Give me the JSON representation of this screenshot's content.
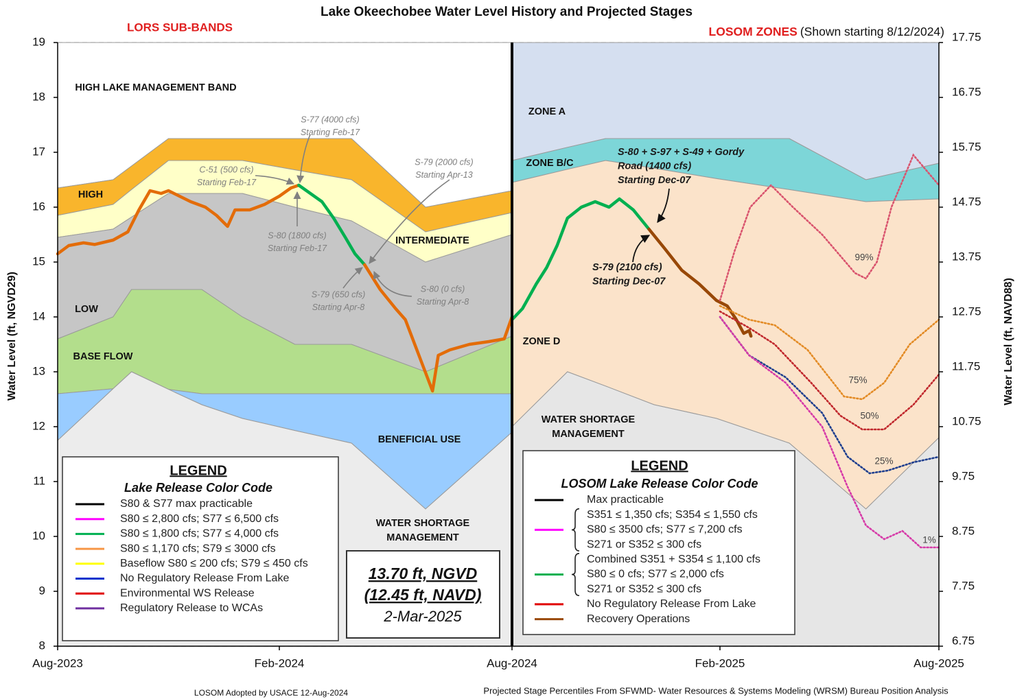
{
  "chart_data": {
    "type": "line",
    "title": "Lake Okeechobee Water Level History and Projected Stages",
    "subtitle_left": "LORS SUB-BANDS",
    "subtitle_right": "LOSOM ZONES",
    "subtitle_right_note": "(Shown starting  8/12/2024)",
    "y_label": "Water Level (ft, NGVD29)",
    "y2_label": "Water Level (ft, NAVD88)",
    "xlim": [
      0,
      24
    ],
    "xticks": [
      {
        "value": 0,
        "label": "Aug-2023"
      },
      {
        "value": 6,
        "label": "Feb-2024"
      },
      {
        "value": 12,
        "label": "Aug-2024"
      },
      {
        "value": 18,
        "label": "Feb-2025"
      },
      {
        "value": 24,
        "label": "Aug-2025"
      }
    ],
    "ylim": [
      8,
      19
    ],
    "yticks": [
      8,
      9,
      10,
      11,
      12,
      13,
      14,
      15,
      16,
      17,
      18,
      19
    ],
    "y2lim": [
      6.75,
      17.75
    ],
    "y2ticks": [
      6.75,
      7.75,
      8.75,
      9.75,
      10.75,
      11.75,
      12.75,
      13.75,
      14.75,
      15.75,
      16.75,
      17.75
    ],
    "grid": true,
    "divider": 12,
    "bands": [
      {
        "label": [
          "HIGH LAKE MANAGEMENT BAND"
        ],
        "color": "#ffffff",
        "x": [
          0,
          1.5,
          2,
          3,
          3.9,
          5,
          6.4,
          7.86,
          9.77,
          12
        ],
        "upper": [
          19,
          19,
          19,
          19,
          19,
          19,
          19,
          19,
          19,
          19
        ],
        "lower": [
          16.35,
          16.5,
          16.75,
          17.25,
          17.25,
          17.25,
          17.25,
          17.25,
          16.0,
          16.3
        ]
      },
      {
        "label": [
          "HIGH"
        ],
        "color": "#f9b52c",
        "x": [
          0,
          1.5,
          2,
          3,
          3.9,
          5,
          6.4,
          7.86,
          9.77,
          12
        ],
        "upper": [
          16.35,
          16.5,
          16.75,
          17.25,
          17.25,
          17.25,
          17.25,
          17.25,
          16.0,
          16.3
        ],
        "lower": [
          15.85,
          16.05,
          16.32,
          16.85,
          16.85,
          16.85,
          16.68,
          16.5,
          15.55,
          15.9
        ]
      },
      {
        "label": [
          "INTERMEDIATE"
        ],
        "color": "#ffffc8",
        "x": [
          0,
          1.5,
          2,
          3,
          3.9,
          5,
          6.4,
          7.86,
          9.77,
          12
        ],
        "upper": [
          15.85,
          16.05,
          16.32,
          16.85,
          16.85,
          16.85,
          16.68,
          16.5,
          15.55,
          15.9
        ],
        "lower": [
          15.45,
          15.6,
          15.82,
          16.25,
          16.25,
          16.25,
          16.0,
          15.75,
          15.0,
          15.5
        ]
      },
      {
        "label": [
          "LOW"
        ],
        "color": "#c6c6c6",
        "x": [
          0,
          1.5,
          2,
          3,
          3.9,
          5,
          6.4,
          7.86,
          9.77,
          12
        ],
        "upper": [
          15.45,
          15.6,
          15.82,
          16.25,
          16.25,
          16.25,
          16.0,
          15.75,
          15.0,
          15.5
        ],
        "lower": [
          13.6,
          14.0,
          14.5,
          14.5,
          14.5,
          14.0,
          13.5,
          13.5,
          13.0,
          13.65
        ]
      },
      {
        "label": [
          "BASE FLOW"
        ],
        "color": "#b3de8c",
        "x": [
          0,
          1.5,
          2,
          3,
          3.9,
          5,
          6.4,
          7.86,
          9.77,
          12
        ],
        "upper": [
          13.6,
          14.0,
          14.5,
          14.5,
          14.5,
          14.0,
          13.5,
          13.5,
          13.0,
          13.65
        ],
        "lower": [
          12.6,
          12.69,
          13.0,
          12.68,
          12.6,
          12.6,
          12.6,
          12.6,
          12.6,
          12.6
        ]
      },
      {
        "label": [
          "BENEFICIAL USE"
        ],
        "color": "#99ccff",
        "x": [
          0,
          1.5,
          2,
          3,
          3.9,
          5,
          6.4,
          7.86,
          9.77,
          12
        ],
        "upper": [
          12.6,
          12.69,
          13.0,
          12.68,
          12.6,
          12.6,
          12.6,
          12.6,
          12.6,
          12.6
        ],
        "lower": [
          11.75,
          12.69,
          13.0,
          12.68,
          12.4,
          12.15,
          11.93,
          11.7,
          10.5,
          11.9
        ]
      },
      {
        "label": [
          "WATER SHORTAGE",
          "MANAGEMENT"
        ],
        "color": "#ececec",
        "x": [
          0,
          1.5,
          2,
          3,
          3.9,
          5,
          6.4,
          7.86,
          9.77,
          12
        ],
        "upper": [
          11.75,
          12.69,
          13.0,
          12.68,
          12.4,
          12.15,
          11.93,
          11.7,
          10.5,
          11.9
        ],
        "lower": [
          8,
          8,
          8,
          8,
          8,
          8,
          8,
          8,
          8,
          8
        ]
      },
      {
        "label": [
          "ZONE A"
        ],
        "color": "#d5dff0",
        "x": [
          12,
          13.6,
          14.7,
          16.1,
          17.9,
          19.9,
          22,
          24
        ],
        "upper": [
          19,
          19,
          19,
          19,
          19,
          19,
          19,
          19
        ],
        "lower": [
          16.85,
          17.09,
          17.25,
          17.25,
          17.25,
          17.25,
          16.5,
          16.8
        ]
      },
      {
        "label": [
          "ZONE B/C"
        ],
        "color": "#7dd6d8",
        "x": [
          12,
          13.6,
          14.7,
          16.1,
          17.9,
          19.9,
          22,
          24
        ],
        "upper": [
          16.85,
          17.09,
          17.25,
          17.25,
          17.25,
          17.25,
          16.5,
          16.8
        ],
        "lower": [
          16.45,
          16.69,
          16.85,
          16.71,
          16.52,
          16.32,
          16.1,
          16.15
        ]
      },
      {
        "label": [
          "ZONE D"
        ],
        "color": "#fbe3ca",
        "x": [
          12,
          13.6,
          14.7,
          16.1,
          17.9,
          19.9,
          22,
          24
        ],
        "upper": [
          16.45,
          16.69,
          16.85,
          16.71,
          16.52,
          16.32,
          16.1,
          16.15
        ],
        "lower": [
          12.0,
          13.0,
          12.74,
          12.4,
          12.15,
          11.7,
          10.5,
          11.8
        ]
      },
      {
        "label": [
          "WATER SHORTAGE",
          "MANAGEMENT"
        ],
        "color": "#e6e6e6",
        "x": [
          12,
          13.6,
          14.7,
          16.1,
          17.9,
          19.9,
          22,
          24
        ],
        "upper": [
          12.0,
          13.0,
          12.74,
          12.4,
          12.15,
          11.7,
          10.5,
          11.8
        ],
        "lower": [
          8,
          8,
          8,
          8,
          8,
          8,
          8,
          8
        ]
      }
    ],
    "series": [
      {
        "color": "#e36c09",
        "x": [
          0,
          0.3,
          0.7,
          1.0,
          1.5,
          1.9,
          2.2,
          2.5,
          2.8,
          3.0,
          3.3,
          3.6,
          4.0,
          4.3,
          4.6,
          4.8,
          5.2,
          5.6,
          6.0,
          6.3,
          6.5
        ],
        "values": [
          15.15,
          15.3,
          15.35,
          15.32,
          15.4,
          15.55,
          15.95,
          16.3,
          16.25,
          16.3,
          16.2,
          16.1,
          16.0,
          15.85,
          15.65,
          15.95,
          15.95,
          16.05,
          16.2,
          16.35,
          16.4
        ]
      },
      {
        "color": "#00b050",
        "x": [
          6.5,
          6.8,
          7.1,
          7.4,
          7.7,
          7.95,
          8.2
        ],
        "values": [
          16.4,
          16.25,
          16.1,
          15.8,
          15.45,
          15.15,
          14.95
        ]
      },
      {
        "color": "#e36c09",
        "x": [
          8.2,
          8.6,
          9.0,
          9.25,
          9.6,
          9.95,
          10.1,
          10.4,
          10.9,
          11.4,
          11.8,
          12
        ],
        "values": [
          14.95,
          14.5,
          14.15,
          13.95,
          13.3,
          12.65,
          13.3,
          13.4,
          13.5,
          13.55,
          13.6,
          14.0
        ]
      },
      {
        "color": "#00b050",
        "x": [
          12,
          12.3,
          12.7,
          13.0,
          13.3,
          13.6,
          14.0,
          14.4,
          14.8,
          15.1,
          15.5,
          15.95
        ],
        "values": [
          13.95,
          14.15,
          14.6,
          14.9,
          15.3,
          15.8,
          16.0,
          16.1,
          16.0,
          16.15,
          15.95,
          15.6
        ]
      },
      {
        "color": "#984807",
        "x": [
          15.95,
          16.4,
          16.9,
          17.4,
          17.9,
          18.2,
          18.45,
          18.65,
          18.8,
          18.85
        ],
        "values": [
          15.6,
          15.25,
          14.85,
          14.6,
          14.3,
          14.2,
          13.95,
          13.7,
          13.75,
          13.65
        ]
      }
    ],
    "projections": [
      {
        "name": "99%",
        "color": "#d9546e",
        "x": [
          18.0,
          18.4,
          18.83,
          19.4,
          20.0,
          20.8,
          21.7,
          22.0,
          22.3,
          22.7,
          23.3,
          24
        ],
        "values": [
          14.3,
          15.2,
          16.0,
          16.4,
          16.0,
          15.5,
          14.8,
          14.7,
          15.0,
          16.0,
          16.95,
          16.4
        ]
      },
      {
        "name": "75%",
        "color": "#e38b25",
        "x": [
          18,
          18.8,
          19.5,
          20.4,
          21.4,
          21.9,
          22.5,
          23.2,
          24
        ],
        "values": [
          14.2,
          13.95,
          13.85,
          13.4,
          12.55,
          12.5,
          12.8,
          13.5,
          13.95
        ]
      },
      {
        "name": "50%",
        "color": "#c0282d",
        "x": [
          18,
          18.8,
          19.5,
          20.5,
          21.3,
          21.9,
          22.5,
          23.3,
          24
        ],
        "values": [
          14.1,
          13.8,
          13.5,
          12.8,
          12.2,
          11.95,
          11.95,
          12.4,
          12.95
        ]
      },
      {
        "name": "25%",
        "color": "#1f3f8f",
        "x": [
          18,
          18.8,
          19.8,
          20.8,
          21.5,
          22.1,
          22.6,
          23.3,
          24
        ],
        "values": [
          14.0,
          13.3,
          12.9,
          12.25,
          11.45,
          11.15,
          11.2,
          11.35,
          11.45
        ]
      },
      {
        "name": "1%",
        "color": "#d63aa8",
        "x": [
          18,
          18.8,
          19.8,
          20.8,
          21.5,
          22.0,
          22.5,
          23,
          23.5,
          24
        ],
        "values": [
          14.0,
          13.3,
          12.8,
          12.0,
          10.9,
          10.2,
          9.95,
          10.1,
          9.8,
          9.8
        ]
      }
    ],
    "annotations": [
      {
        "lines": [
          "S-77 (4000 cfs)",
          "Starting Feb-17"
        ],
        "color": "#7f7f7f"
      },
      {
        "lines": [
          "C-51 (500 cfs)",
          "Starting Feb-17"
        ],
        "color": "#7f7f7f"
      },
      {
        "lines": [
          "S-79 (2000 cfs)",
          "Starting Apr-13"
        ],
        "color": "#7f7f7f"
      },
      {
        "lines": [
          "S-80 (1800 cfs)",
          "Starting Feb-17"
        ],
        "color": "#7f7f7f"
      },
      {
        "lines": [
          "S-79 (650 cfs)",
          "Starting Apr-8"
        ],
        "color": "#7f7f7f"
      },
      {
        "lines": [
          "S-80 (0 cfs)",
          "Starting Apr-8"
        ],
        "color": "#7f7f7f"
      },
      {
        "lines": [
          "S-80 + S-97 + S-49 + Gordy",
          "Road (1400 cfs)",
          "Starting Dec-07"
        ],
        "color": "#1a1a1a"
      },
      {
        "lines": [
          "S-79 (2100 cfs)",
          "Starting Dec-07"
        ],
        "color": "#1a1a1a"
      }
    ],
    "legend_left": {
      "title": "LEGEND",
      "subtitle": "Lake Release Color Code",
      "entries": [
        {
          "label": "S80 & S77 max practicable",
          "color": "#000000"
        },
        {
          "label": "S80 ≤ 2,800 cfs; S77 ≤ 6,500 cfs",
          "color": "#ff00ff"
        },
        {
          "label": "S80 ≤ 1,800 cfs; S77 ≤ 4,000 cfs",
          "color": "#00b050"
        },
        {
          "label": "S80 ≤ 1,170 cfs; S79 ≤ 3000 cfs",
          "color": "#f79646"
        },
        {
          "label": "Baseflow S80 ≤ 200 cfs; S79 ≤ 450 cfs",
          "color": "#ffff00"
        },
        {
          "label": "No Regulatory Release From Lake",
          "color": "#0033cc"
        },
        {
          "label": "Environmental WS Release",
          "color": "#e00000"
        },
        {
          "label": "Regulatory Release to WCAs",
          "color": "#7030a0"
        }
      ]
    },
    "legend_right": {
      "title": "LEGEND",
      "subtitle": "LOSOM Lake Release Color Code",
      "entries": [
        {
          "lines": [
            "Max practicable"
          ],
          "color": "#000000"
        },
        {
          "lines": [
            "S351 ≤ 1,350 cfs; S354 ≤ 1,550 cfs",
            "S80 ≤ 3500 cfs; S77 ≤ 7,200 cfs",
            "S271 or S352 ≤ 300 cfs"
          ],
          "color": "#ff00ff"
        },
        {
          "lines": [
            "Combined S351 + S354 ≤ 1,100 cfs",
            "S80 ≤ 0 cfs; S77 ≤ 2,000 cfs",
            "S271 or S352 ≤  300 cfs"
          ],
          "color": "#00b050"
        },
        {
          "lines": [
            "No Regulatory Release From Lake"
          ],
          "color": "#e00000"
        },
        {
          "lines": [
            "Recovery Operations"
          ],
          "color": "#984807"
        }
      ]
    },
    "status_box": {
      "stage_ngvd": "13.70 ft, NGVD",
      "stage_navd": "(12.45 ft, NAVD)",
      "date": "2-Mar-2025"
    },
    "footnotes": [
      "LOSOM Adopted by USACE 12-Aug-2024",
      "Projected Stage Percentiles From SFWMD- Water Resources & Systems Modeling (WRSM) Bureau Position Analysis"
    ]
  }
}
